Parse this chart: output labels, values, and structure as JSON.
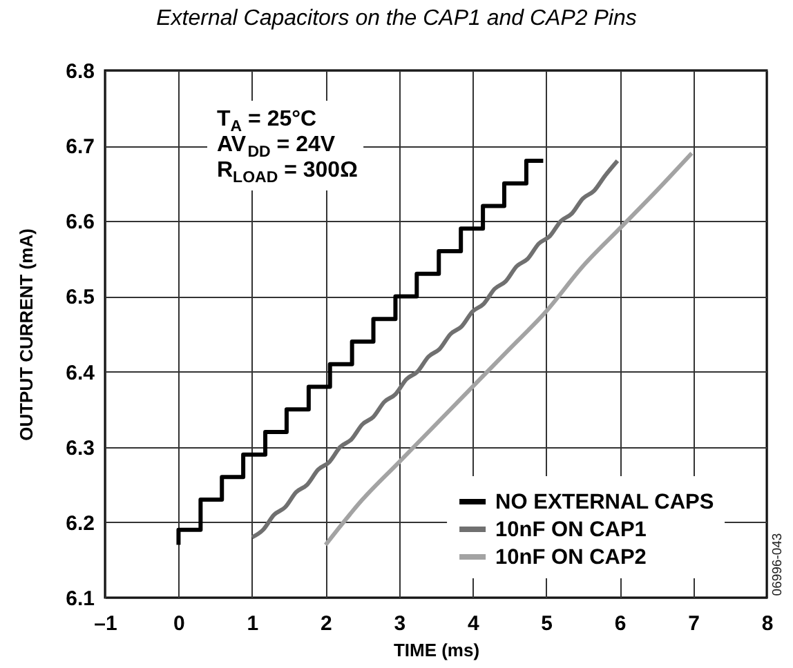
{
  "chart_data": {
    "type": "line",
    "title": "External Capacitors on the CAP1 and CAP2 Pins",
    "xlabel": "TIME (ms)",
    "ylabel": "OUTPUT CURRENT (mA)",
    "xlim": [
      -1,
      8
    ],
    "xticks": [
      {
        "value": -1,
        "label": "–1"
      },
      0,
      1,
      2,
      3,
      4,
      5,
      6,
      7,
      8
    ],
    "ylim": [
      6.1,
      6.8
    ],
    "yticks": [
      6.1,
      6.2,
      6.3,
      6.4,
      6.5,
      6.6,
      6.7,
      6.8
    ],
    "grid": true,
    "legend": "bottom right",
    "annotations": [
      "T$_{A}$ = 25°C",
      "AV$_{DD}$ = 24V",
      "R$_{LOAD}$ = 300Ω",
      "06996-043"
    ],
    "series": [
      {
        "name": "NO EXTERNAL CAPS",
        "color": "#000000",
        "type": "step",
        "x": [
          0,
          0,
          0.3,
          0.59,
          0.88,
          1.18,
          1.47,
          1.77,
          2.06,
          2.36,
          2.65,
          2.95,
          3.24,
          3.54,
          3.84,
          4.14,
          4.43,
          4.73,
          4.96
        ],
        "values": [
          6.17,
          6.19,
          6.23,
          6.26,
          6.29,
          6.32,
          6.35,
          6.38,
          6.41,
          6.44,
          6.47,
          6.5,
          6.53,
          6.56,
          6.59,
          6.62,
          6.65,
          6.68,
          6.68
        ]
      },
      {
        "name": "10nF ON CAP1",
        "color": "#707070",
        "x": [
          1.0,
          1.15,
          1.3,
          1.45,
          1.6,
          1.75,
          1.9,
          2.05,
          2.2,
          2.35,
          2.5,
          2.65,
          2.8,
          2.95,
          3.1,
          3.25,
          3.4,
          3.55,
          3.7,
          3.85,
          4.0,
          4.15,
          4.3,
          4.45,
          4.6,
          4.75,
          4.9,
          5.05,
          5.2,
          5.35,
          5.5,
          5.65,
          5.8,
          5.97
        ],
        "values": [
          6.18,
          6.19,
          6.21,
          6.22,
          6.24,
          6.25,
          6.27,
          6.28,
          6.3,
          6.31,
          6.33,
          6.34,
          6.36,
          6.37,
          6.39,
          6.4,
          6.42,
          6.43,
          6.45,
          6.46,
          6.48,
          6.49,
          6.51,
          6.52,
          6.54,
          6.55,
          6.57,
          6.58,
          6.6,
          6.61,
          6.63,
          6.64,
          6.66,
          6.68
        ]
      },
      {
        "name": "10nF ON CAP2",
        "color": "#a3a3a3",
        "x": [
          2.0,
          2.5,
          3.0,
          3.5,
          4.0,
          4.5,
          5.0,
          5.5,
          6.0,
          6.5,
          6.98
        ],
        "values": [
          6.17,
          6.23,
          6.28,
          6.33,
          6.38,
          6.43,
          6.48,
          6.54,
          6.59,
          6.64,
          6.69
        ]
      }
    ]
  }
}
